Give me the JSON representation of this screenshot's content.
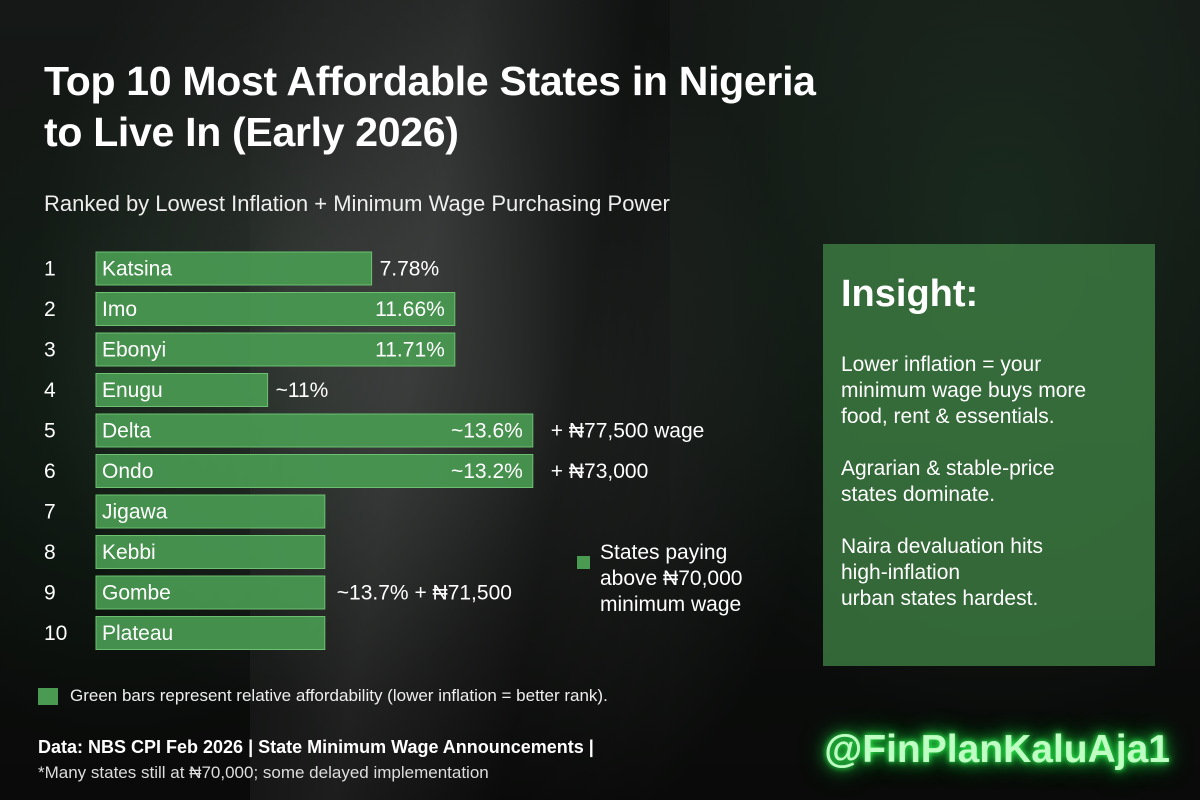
{
  "title": "Top 10 Most Affordable States in Nigeria to Live In (Early 2026)",
  "subtitle": "Ranked by Lowest Inflation + Minimum Wage Purchasing Power",
  "colors": {
    "bar": "#4a9a52",
    "bar_outline": "#6cc070",
    "insight_bg": "#3f8044",
    "handle_glow": "#34ff55"
  },
  "chart_data": {
    "type": "bar",
    "orientation": "horizontal",
    "categories": [
      "Katsina",
      "Imo",
      "Ebonyi",
      "Enugu",
      "Delta",
      "Ondo",
      "Jigawa",
      "Kebbi",
      "Gombe",
      "Plateau"
    ],
    "ranks": [
      "1",
      "2",
      "3",
      "4",
      "5",
      "6",
      "7",
      "8",
      "9",
      "10"
    ],
    "bar_lengths_relative": [
      0.53,
      0.69,
      0.69,
      0.33,
      0.84,
      0.84,
      0.44,
      0.44,
      0.44,
      0.44
    ],
    "value_labels": [
      "7.78%",
      "11.66%",
      "11.71%",
      "~11%",
      "~13.6%",
      "~13.2%",
      "",
      "",
      "",
      ""
    ],
    "value_label_inside": [
      false,
      true,
      true,
      false,
      true,
      true,
      false,
      false,
      false,
      false
    ],
    "notes": [
      "",
      "",
      "",
      "",
      "+ ₦77,500 wage",
      "+ ₦73,000",
      "",
      "",
      "~13.7% + ₦71,500",
      ""
    ],
    "grid": false
  },
  "legend": {
    "text": "States paying above ₦70,000 minimum wage"
  },
  "insight": {
    "title": "Insight:",
    "items": [
      "Lower inflation = your\nminimum wage buys more\nfood, rent & essentials.",
      "Agrarian & stable-price\nstates dominate.",
      "Naira devaluation hits\nhigh-inflation\nurban states hardest."
    ]
  },
  "footnote": "Green bars represent relative affordability (lower inflation = better rank).",
  "source": "Data: NBS CPI Feb 2026 | State Minimum Wage Announcements |",
  "source_note": "*Many states still at ₦70,000; some delayed implementation",
  "handle": "@FinPlanKaluAja1"
}
